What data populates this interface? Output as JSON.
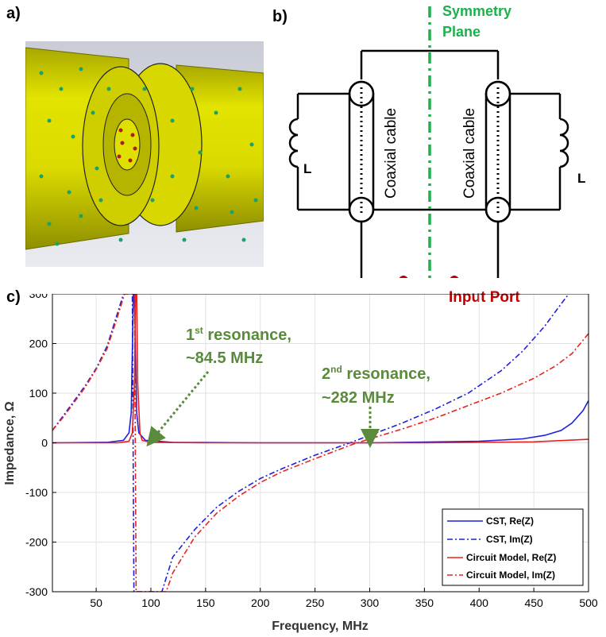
{
  "panels": {
    "a": "a)",
    "b": "b)",
    "c": "c)"
  },
  "circuit": {
    "symmetry_line1": "Symmetry",
    "symmetry_line2": "Plane",
    "left_cable": "Coaxial cable",
    "right_cable": "Coaxial cable",
    "inductor_left": "L",
    "inductor_right": "L",
    "input_port": "Input Port"
  },
  "annotations": {
    "res1_base": "1",
    "res1_sup": "st",
    "res1_rest": " resonance,",
    "res1_value": "~84.5 MHz",
    "res2_base": "2",
    "res2_sup": "nd",
    "res2_rest": "  resonance,",
    "res2_value": "~282 MHz"
  },
  "colors": {
    "blue": "#1f1fe0",
    "red": "#e8231e",
    "green_text": "#5a8a3c",
    "symmetry_green": "#1db04c",
    "port_red": "#c00000",
    "yellow": "#e6e600"
  },
  "chart_data": {
    "type": "line",
    "xlabel": "Frequency, MHz",
    "ylabel": "Impedance, Ω",
    "xlim": [
      10,
      500
    ],
    "ylim": [
      -300,
      300
    ],
    "xticks": [
      50,
      100,
      150,
      200,
      250,
      300,
      350,
      400,
      450,
      500
    ],
    "yticks": [
      -300,
      -200,
      -100,
      0,
      100,
      200,
      300
    ],
    "grid": true,
    "legend_position": "bottom-right",
    "series": [
      {
        "name": "CST, Re(Z)",
        "color": "#1f1fe0",
        "dash": "solid",
        "x": [
          10,
          60,
          75,
          80,
          82,
          84,
          84.5,
          85,
          87,
          89,
          95,
          120,
          200,
          300,
          400,
          440,
          460,
          475,
          485,
          495,
          500
        ],
        "y": [
          0,
          1,
          5,
          20,
          60,
          300,
          300,
          300,
          60,
          20,
          5,
          1,
          0,
          0,
          3,
          8,
          15,
          25,
          40,
          65,
          85
        ]
      },
      {
        "name": "CST, Im(Z)",
        "color": "#1f1fe0",
        "dash": "dashdot",
        "x": [
          10,
          20,
          30,
          40,
          50,
          60,
          70,
          75,
          80,
          83,
          84.5,
          86,
          110,
          120,
          140,
          160,
          180,
          200,
          220,
          250,
          282,
          300,
          330,
          360,
          390,
          420,
          440,
          460,
          475,
          482
        ],
        "y": [
          25,
          55,
          85,
          115,
          150,
          195,
          265,
          300,
          300,
          300,
          -300,
          -300,
          -300,
          -230,
          -175,
          -130,
          -98,
          -72,
          -52,
          -25,
          0,
          15,
          40,
          68,
          100,
          145,
          185,
          235,
          280,
          300
        ]
      },
      {
        "name": "Circuit Model, Re(Z)",
        "color": "#e8231e",
        "dash": "solid",
        "x": [
          10,
          70,
          80,
          83,
          85,
          86,
          87,
          88,
          90,
          92,
          100,
          150,
          250,
          350,
          450,
          500
        ],
        "y": [
          0,
          0,
          3,
          20,
          120,
          300,
          300,
          120,
          20,
          5,
          1,
          0,
          0,
          0,
          2,
          7
        ]
      },
      {
        "name": "Circuit Model, Im(Z)",
        "color": "#e8231e",
        "dash": "dashdot",
        "x": [
          10,
          20,
          30,
          40,
          50,
          60,
          70,
          76,
          80,
          85,
          86.5,
          88,
          114,
          120,
          140,
          160,
          180,
          200,
          220,
          250,
          282,
          300,
          330,
          360,
          390,
          420,
          450,
          470,
          485,
          500
        ],
        "y": [
          25,
          52,
          82,
          112,
          148,
          190,
          258,
          300,
          300,
          300,
          -300,
          -300,
          -300,
          -262,
          -190,
          -142,
          -108,
          -80,
          -58,
          -32,
          -5,
          8,
          28,
          50,
          75,
          100,
          130,
          155,
          180,
          220
        ]
      }
    ]
  }
}
